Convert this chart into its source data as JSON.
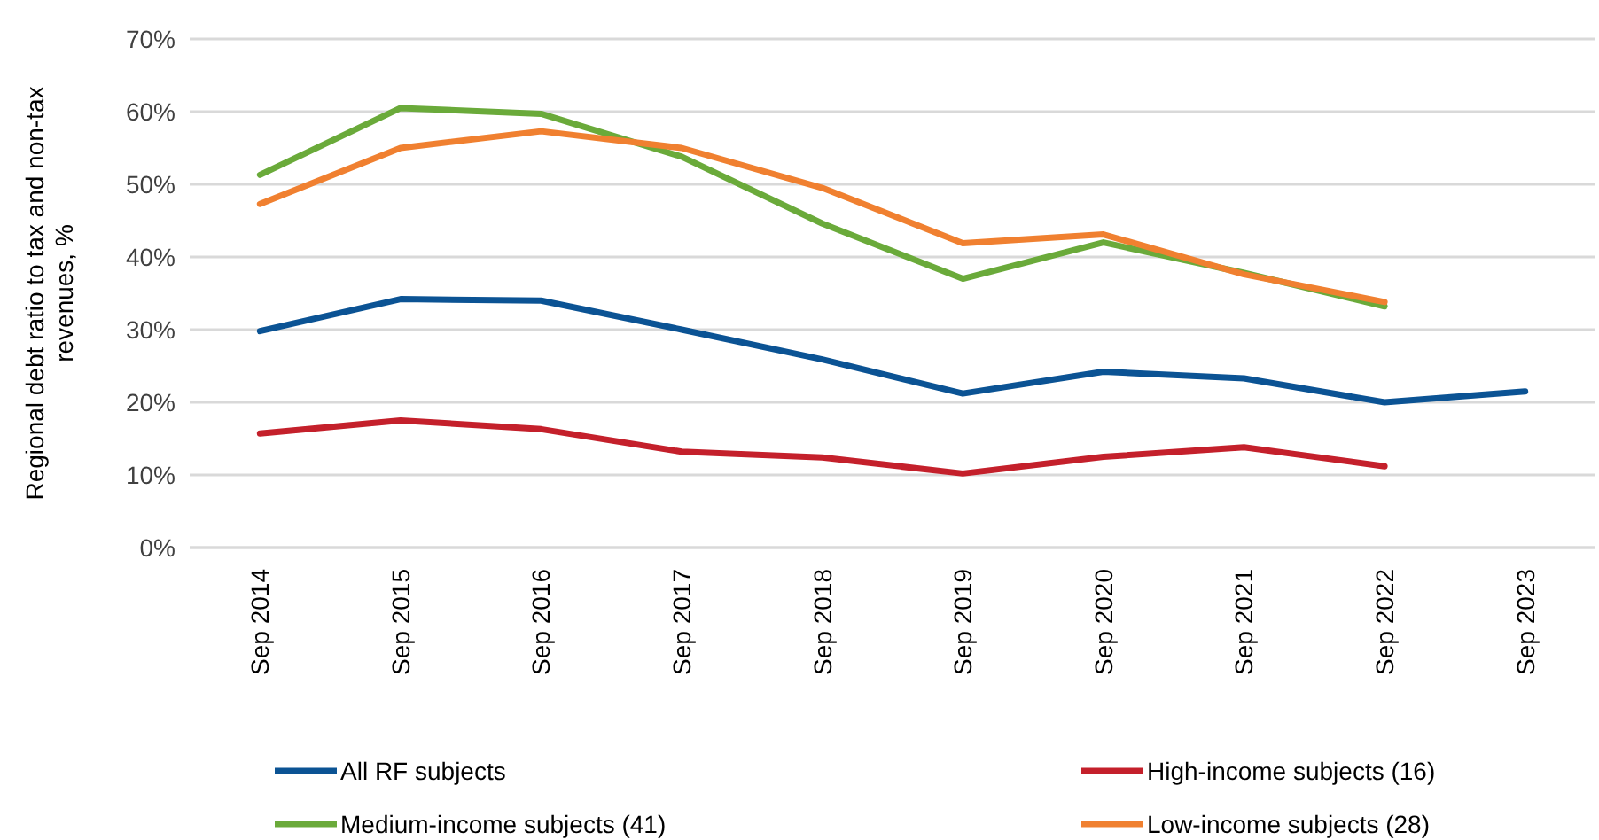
{
  "chart_data": {
    "type": "line",
    "ylabel": "Regional debt ratio to tax and non-tax revenues, %",
    "categories": [
      "Sep 2014",
      "Sep 2015",
      "Sep 2016",
      "Sep 2017",
      "Sep 2018",
      "Sep 2019",
      "Sep 2020",
      "Sep 2021",
      "Sep 2022",
      "Sep 2023"
    ],
    "ylim": [
      0,
      70
    ],
    "yticks": [
      {
        "value": 0,
        "label": "0%"
      },
      {
        "value": 10,
        "label": "10%"
      },
      {
        "value": 20,
        "label": "20%"
      },
      {
        "value": 30,
        "label": "30%"
      },
      {
        "value": 40,
        "label": "40%"
      },
      {
        "value": 50,
        "label": "50%"
      },
      {
        "value": 60,
        "label": "60%"
      },
      {
        "value": 70,
        "label": "70%"
      }
    ],
    "grid": "y",
    "legend": "bottom",
    "marker": "none",
    "line_style": "solid",
    "series": [
      {
        "name": "All RF subjects",
        "color": "#0b5394",
        "values": [
          29.8,
          34.2,
          34.0,
          30.0,
          25.9,
          21.2,
          24.2,
          23.3,
          20.0,
          21.5
        ]
      },
      {
        "name": "High-income subjects (16)",
        "color": "#c4202b",
        "values": [
          15.7,
          17.5,
          16.3,
          13.2,
          12.4,
          10.2,
          12.5,
          13.8,
          11.2,
          null
        ]
      },
      {
        "name": "Medium-income subjects (41)",
        "color": "#6aaa3a",
        "values": [
          51.3,
          60.5,
          59.7,
          53.8,
          44.6,
          37.0,
          42.0,
          37.8,
          33.2,
          null
        ]
      },
      {
        "name": "Low-income subjects (28)",
        "color": "#f08030",
        "values": [
          47.3,
          55.0,
          57.3,
          55.0,
          49.5,
          41.9,
          43.1,
          37.6,
          33.8,
          null
        ]
      }
    ]
  }
}
